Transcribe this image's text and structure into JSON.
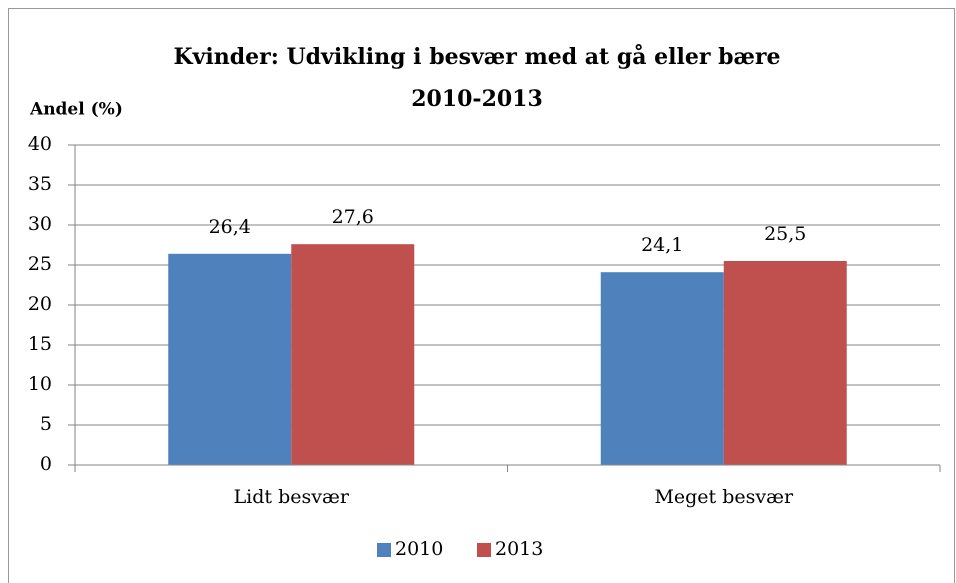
{
  "chart_data": {
    "type": "bar",
    "title": "Kvinder: Udvikling i besvær med at gå eller bære",
    "subtitle": "2010-2013",
    "y_label": "Andel (%)",
    "categories": [
      "Lidt besvær",
      "Meget besvær"
    ],
    "series": [
      {
        "name": "2010",
        "color": "#4f81bd",
        "values": [
          26.4,
          24.1
        ],
        "value_labels": [
          "26,4",
          "24,1"
        ]
      },
      {
        "name": "2013",
        "color": "#c0504d",
        "values": [
          27.6,
          25.5
        ],
        "value_labels": [
          "27,6",
          "25,5"
        ]
      }
    ],
    "ylim": [
      0,
      40
    ],
    "yticks": [
      0,
      5,
      10,
      15,
      20,
      25,
      30,
      35,
      40
    ],
    "grid": true,
    "legend": "bottom"
  }
}
